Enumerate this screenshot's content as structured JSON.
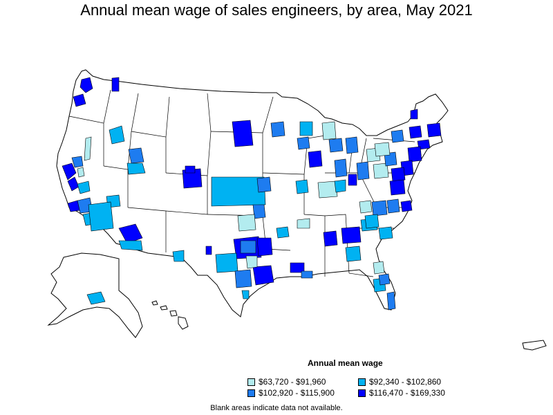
{
  "title": "Annual mean wage of sales engineers, by area, May 2021",
  "legend": {
    "title": "Annual mean wage",
    "items": [
      {
        "label": "$63,720 - $91,960",
        "color": "#b3ecef"
      },
      {
        "label": "$92,340 - $102,860",
        "color": "#00b2f2"
      },
      {
        "label": "$102,920 - $115,900",
        "color": "#1e7cf0"
      },
      {
        "label": "$116,470 - $169,330",
        "color": "#0000ff"
      }
    ]
  },
  "note": "Blank areas indicate data not available.",
  "colors": {
    "outline": "#000000",
    "background": "#ffffff"
  }
}
